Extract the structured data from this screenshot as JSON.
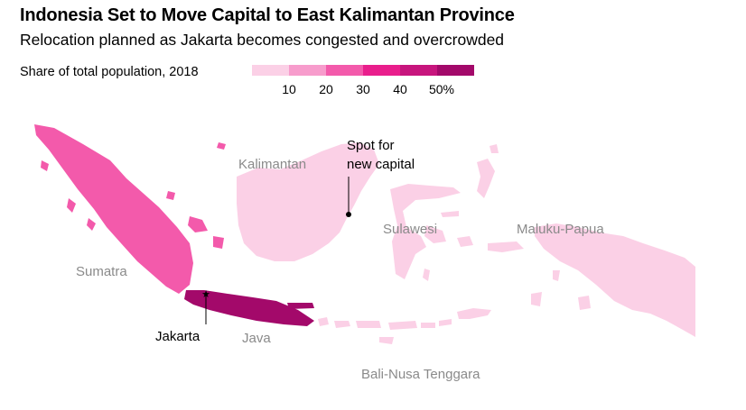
{
  "title": "Indonesia Set to Move Capital to East Kalimantan Province",
  "subtitle": "Relocation planned as Jakarta becomes congested and overcrowded",
  "legend": {
    "label": "Share of total population, 2018",
    "swatch_colors": [
      "#fbd0e6",
      "#f79ccc",
      "#f35aab",
      "#e91e8c",
      "#c7157d",
      "#a3096a"
    ],
    "ticks": [
      "10",
      "20",
      "30",
      "40",
      "50%"
    ]
  },
  "regions": [
    {
      "name": "Sumatra",
      "share_bin": "20-30",
      "color": "#f35aab"
    },
    {
      "name": "Java",
      "share_bin": "50%+",
      "color": "#a3096a"
    },
    {
      "name": "Kalimantan",
      "share_bin": "0-10",
      "color": "#fbd0e6"
    },
    {
      "name": "Sulawesi",
      "share_bin": "0-10",
      "color": "#fbd0e6"
    },
    {
      "name": "Maluku-Papua",
      "share_bin": "0-10",
      "color": "#fbd0e6"
    },
    {
      "name": "Bali-Nusa Tenggara",
      "share_bin": "0-10",
      "color": "#fbd0e6"
    }
  ],
  "labels": {
    "sumatra": "Sumatra",
    "java": "Java",
    "kalimantan": "Kalimantan",
    "sulawesi": "Sulawesi",
    "maluku_papua": "Maluku-Papua",
    "bali_nusa": "Bali-Nusa Tenggara",
    "jakarta": "Jakarta",
    "capital_line1": "Spot for",
    "capital_line2": "new capital"
  }
}
